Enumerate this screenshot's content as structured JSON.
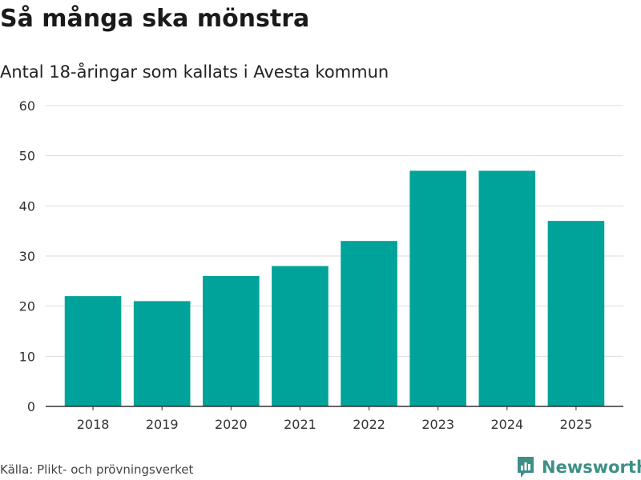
{
  "header": {
    "title": "Så många ska mönstra",
    "subtitle": "Antal 18-åringar som kallats i Avesta kommun"
  },
  "footer": {
    "source": "Källa: Plikt- och prövningsverket",
    "brand": "Newsworthy",
    "brand_icon": "newsworthy-logo-icon"
  },
  "colors": {
    "bar": "#00a39a",
    "grid": "#dddddd",
    "axis": "#333333",
    "brand": "#3d8f88"
  },
  "chart_data": {
    "type": "bar",
    "title": "Så många ska mönstra",
    "subtitle": "Antal 18-åringar som kallats i Avesta kommun",
    "xlabel": "",
    "ylabel": "",
    "categories": [
      "2018",
      "2019",
      "2020",
      "2021",
      "2022",
      "2023",
      "2024",
      "2025"
    ],
    "values": [
      22,
      21,
      26,
      28,
      33,
      47,
      47,
      37
    ],
    "ylim": [
      0,
      60
    ],
    "yticks": [
      0,
      10,
      20,
      30,
      40,
      50,
      60
    ],
    "grid": true,
    "legend": "none"
  }
}
